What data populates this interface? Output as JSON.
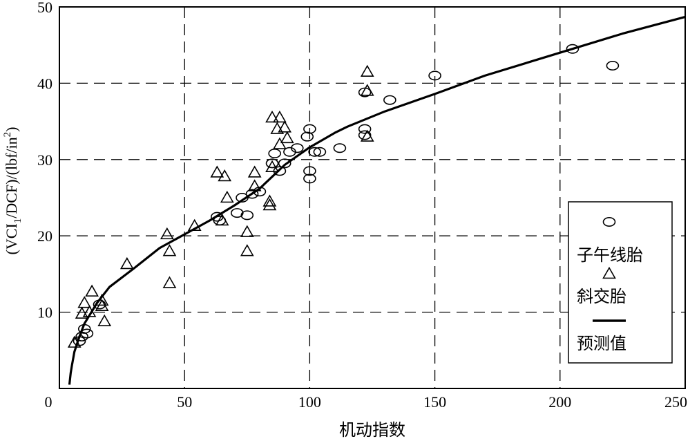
{
  "chart_data": {
    "type": "scatter",
    "xlabel": "机动指数",
    "ylabel_parts": [
      "(VCI",
      "1",
      "/DCF)/(lbf/in",
      "2",
      ")"
    ],
    "xlim": [
      0,
      250
    ],
    "ylim": [
      0,
      50
    ],
    "xticks": [
      0,
      50,
      100,
      150,
      200,
      250
    ],
    "yticks": [
      10,
      20,
      30,
      40,
      50
    ],
    "grid": true,
    "grid_style": "dashed",
    "legend_position": "bottom-right",
    "series": [
      {
        "name": "子午线胎",
        "marker": "circle",
        "points": [
          [
            8,
            6.2
          ],
          [
            9,
            6.8
          ],
          [
            10,
            7.8
          ],
          [
            11,
            7.2
          ],
          [
            16,
            11
          ],
          [
            63,
            22.5
          ],
          [
            64,
            22.0
          ],
          [
            71,
            23.0
          ],
          [
            73,
            25.0
          ],
          [
            75,
            22.7
          ],
          [
            77,
            25.5
          ],
          [
            80,
            25.8
          ],
          [
            85,
            29.5
          ],
          [
            86,
            30.8
          ],
          [
            88,
            28.5
          ],
          [
            90,
            29.5
          ],
          [
            92,
            31.0
          ],
          [
            95,
            31.5
          ],
          [
            99,
            33.0
          ],
          [
            100,
            34.0
          ],
          [
            100,
            28.5
          ],
          [
            100,
            27.5
          ],
          [
            102,
            31.0
          ],
          [
            104,
            31.0
          ],
          [
            112,
            31.5
          ],
          [
            122,
            38.8
          ],
          [
            122,
            34.0
          ],
          [
            122,
            33.2
          ],
          [
            132,
            37.8
          ],
          [
            150,
            41.0
          ],
          [
            205,
            44.5
          ],
          [
            221,
            42.3
          ]
        ]
      },
      {
        "name": "斜交胎",
        "marker": "triangle",
        "points": [
          [
            6,
            6.0
          ],
          [
            9,
            9.8
          ],
          [
            10,
            11.2
          ],
          [
            12,
            10.0
          ],
          [
            13,
            12.7
          ],
          [
            17,
            11.5
          ],
          [
            17,
            10.8
          ],
          [
            18,
            8.8
          ],
          [
            27,
            16.3
          ],
          [
            43,
            20.2
          ],
          [
            44,
            18.0
          ],
          [
            44,
            13.8
          ],
          [
            54,
            21.3
          ],
          [
            63,
            28.3
          ],
          [
            65,
            22.0
          ],
          [
            66,
            27.8
          ],
          [
            67,
            25.0
          ],
          [
            75,
            20.5
          ],
          [
            75,
            18.0
          ],
          [
            78,
            28.3
          ],
          [
            78,
            26.5
          ],
          [
            84,
            24.5
          ],
          [
            84,
            24.0
          ],
          [
            85,
            35.5
          ],
          [
            85,
            29.0
          ],
          [
            87,
            34.0
          ],
          [
            88,
            35.5
          ],
          [
            88,
            32.0
          ],
          [
            90,
            34.2
          ],
          [
            91,
            32.8
          ],
          [
            123,
            41.5
          ],
          [
            123,
            39.0
          ],
          [
            123,
            33.0
          ]
        ]
      },
      {
        "name": "预测值",
        "marker": "line",
        "points": [
          [
            4,
            0.5
          ],
          [
            4.5,
            2.0
          ],
          [
            5,
            3.0
          ],
          [
            6,
            4.8
          ],
          [
            8,
            6.8
          ],
          [
            10,
            8.5
          ],
          [
            15,
            11.2
          ],
          [
            20,
            13.3
          ],
          [
            30,
            15.8
          ],
          [
            40,
            18.4
          ],
          [
            50,
            20.2
          ],
          [
            60,
            22.0
          ],
          [
            70,
            24.0
          ],
          [
            80,
            26.2
          ],
          [
            90,
            29.3
          ],
          [
            100,
            31.6
          ],
          [
            110,
            33.5
          ],
          [
            115,
            34.3
          ],
          [
            130,
            36.3
          ],
          [
            150,
            38.6
          ],
          [
            170,
            41.0
          ],
          [
            200,
            44.0
          ],
          [
            225,
            46.5
          ],
          [
            250,
            48.7
          ]
        ]
      }
    ]
  }
}
